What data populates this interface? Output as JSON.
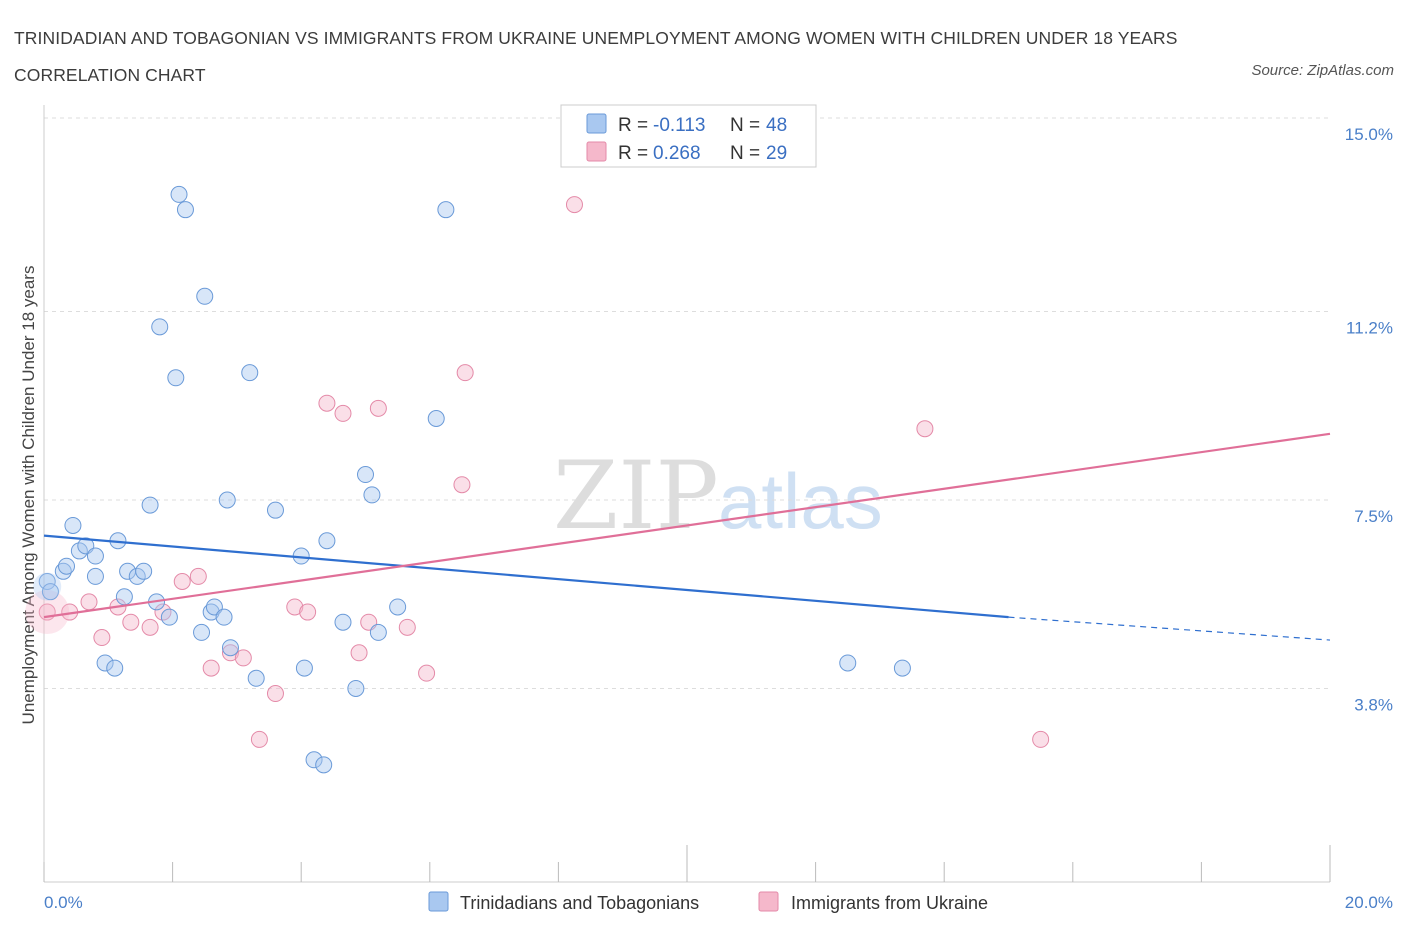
{
  "title": "TRINIDADIAN AND TOBAGONIAN VS IMMIGRANTS FROM UKRAINE UNEMPLOYMENT AMONG WOMEN WITH CHILDREN UNDER 18 YEARS CORRELATION CHART",
  "source": "Source: ZipAtlas.com",
  "watermark": {
    "zip": "ZIP",
    "atlas": "atlas"
  },
  "legend": {
    "r_label": "R =",
    "n_label": "N =",
    "rows": [
      {
        "r": "-0.113",
        "n": "48"
      },
      {
        "r": "0.268",
        "n": "29"
      }
    ]
  },
  "colors": {
    "blue_fill": "#a9c8f0",
    "blue_stroke": "#6a9ad8",
    "blue_line": "#2f6fcf",
    "pink_fill": "#f5b8cb",
    "pink_stroke": "#e48aa8",
    "pink_line": "#e06f98",
    "accent_text": "#4a7fc8"
  },
  "chart_data": {
    "type": "scatter",
    "title": "TRINIDADIAN AND TOBAGONIAN VS IMMIGRANTS FROM UKRAINE UNEMPLOYMENT AMONG WOMEN WITH CHILDREN UNDER 18 YEARS CORRELATION CHART",
    "xlabel": "",
    "ylabel": "Unemployment Among Women with Children Under 18 years",
    "xlim": [
      0,
      20
    ],
    "ylim": [
      0,
      15
    ],
    "x_tick_labels": [
      "0.0%",
      "20.0%"
    ],
    "y_ticks": [
      3.8,
      7.5,
      11.2,
      15.0
    ],
    "y_tick_labels": [
      "3.8%",
      "7.5%",
      "11.2%",
      "15.0%"
    ],
    "grid": "horizontal dashed",
    "legend_placement": "bottom-center",
    "series": [
      {
        "name": "Trinidadians and Tobagonians",
        "color": "#a9c8f0",
        "R": -0.113,
        "N": 48,
        "trend": {
          "x0": 0.0,
          "y0": 6.8,
          "x1": 15.0,
          "y1": 5.2,
          "dashed_to_x": 20.0,
          "dashed_y": 4.75
        },
        "points": [
          [
            0.05,
            5.9
          ],
          [
            0.1,
            5.7
          ],
          [
            0.3,
            6.1
          ],
          [
            0.35,
            6.2
          ],
          [
            0.45,
            7.0
          ],
          [
            0.55,
            6.5
          ],
          [
            0.65,
            6.6
          ],
          [
            0.8,
            6.4
          ],
          [
            0.8,
            6.0
          ],
          [
            1.15,
            6.7
          ],
          [
            1.3,
            6.1
          ],
          [
            1.45,
            6.0
          ],
          [
            1.55,
            6.1
          ],
          [
            0.95,
            4.3
          ],
          [
            1.1,
            4.2
          ],
          [
            1.25,
            5.6
          ],
          [
            1.75,
            5.5
          ],
          [
            1.95,
            5.2
          ],
          [
            1.65,
            7.4
          ],
          [
            1.8,
            10.9
          ],
          [
            2.05,
            9.9
          ],
          [
            2.1,
            13.5
          ],
          [
            2.2,
            13.2
          ],
          [
            2.5,
            11.5
          ],
          [
            2.45,
            4.9
          ],
          [
            2.6,
            5.3
          ],
          [
            2.65,
            5.4
          ],
          [
            2.8,
            5.2
          ],
          [
            2.85,
            7.5
          ],
          [
            2.9,
            4.6
          ],
          [
            3.3,
            4.0
          ],
          [
            3.2,
            10.0
          ],
          [
            3.6,
            7.3
          ],
          [
            4.0,
            6.4
          ],
          [
            4.05,
            4.2
          ],
          [
            4.2,
            2.4
          ],
          [
            4.35,
            2.3
          ],
          [
            4.4,
            6.7
          ],
          [
            4.65,
            5.1
          ],
          [
            4.85,
            3.8
          ],
          [
            5.0,
            8.0
          ],
          [
            5.1,
            7.6
          ],
          [
            5.2,
            4.9
          ],
          [
            5.5,
            5.4
          ],
          [
            6.1,
            9.1
          ],
          [
            6.25,
            13.2
          ],
          [
            12.5,
            4.3
          ],
          [
            13.35,
            4.2
          ]
        ]
      },
      {
        "name": "Immigrants from Ukraine",
        "color": "#f5b8cb",
        "R": 0.268,
        "N": 29,
        "trend": {
          "x0": 0.0,
          "y0": 5.2,
          "x1": 20.0,
          "y1": 8.8
        },
        "points": [
          [
            0.05,
            5.3
          ],
          [
            0.4,
            5.3
          ],
          [
            0.7,
            5.5
          ],
          [
            0.9,
            4.8
          ],
          [
            1.15,
            5.4
          ],
          [
            1.35,
            5.1
          ],
          [
            1.65,
            5.0
          ],
          [
            1.85,
            5.3
          ],
          [
            2.15,
            5.9
          ],
          [
            2.4,
            6.0
          ],
          [
            2.6,
            4.2
          ],
          [
            2.9,
            4.5
          ],
          [
            3.1,
            4.4
          ],
          [
            3.35,
            2.8
          ],
          [
            3.6,
            3.7
          ],
          [
            3.9,
            5.4
          ],
          [
            4.1,
            5.3
          ],
          [
            4.4,
            9.4
          ],
          [
            4.65,
            9.2
          ],
          [
            4.9,
            4.5
          ],
          [
            5.05,
            5.1
          ],
          [
            5.2,
            9.3
          ],
          [
            5.65,
            5.0
          ],
          [
            5.95,
            4.1
          ],
          [
            6.5,
            7.8
          ],
          [
            6.55,
            10.0
          ],
          [
            8.25,
            13.3
          ],
          [
            13.7,
            8.9
          ],
          [
            15.5,
            2.8
          ]
        ]
      }
    ]
  },
  "bottom_legend": [
    {
      "label": "Trinidadians and Tobagonians"
    },
    {
      "label": "Immigrants from Ukraine"
    }
  ]
}
